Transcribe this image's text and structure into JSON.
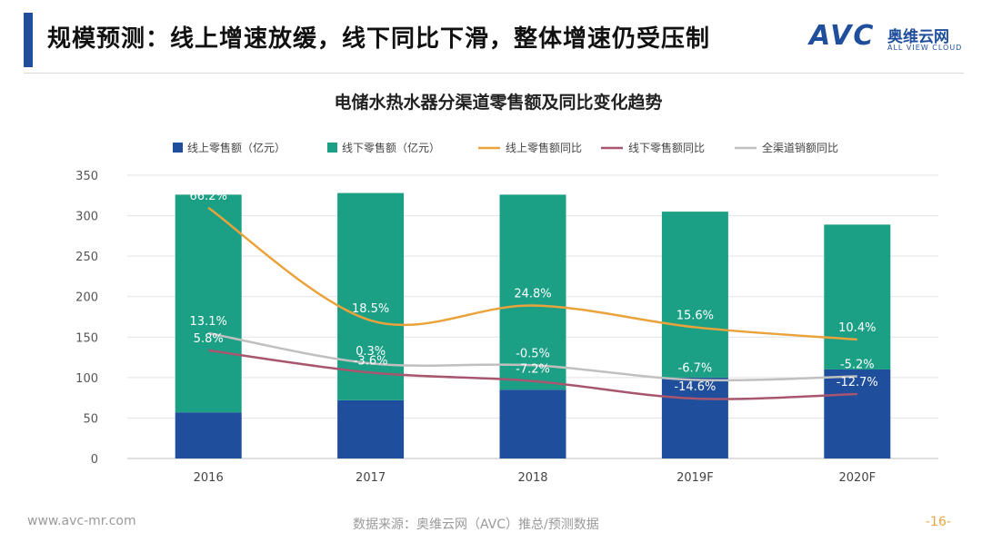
{
  "header": {
    "title": "规模预测：线上增速放缓，线下同比下滑，整体增速仍受压制",
    "accent_color": "#1f4e9c"
  },
  "logo": {
    "mark": "AVC",
    "name_cn": "奥维云网",
    "name_en": "ALL VIEW CLOUD"
  },
  "footer": {
    "website": "www.avc-mr.com",
    "source": "数据来源：奥维云网（AVC）推总/预测数据",
    "page": "-16-"
  },
  "chart_data": {
    "type": "bar",
    "stacked": true,
    "title": "电储水热水器分渠道零售额及同比变化趋势",
    "categories": [
      "2016",
      "2017",
      "2018",
      "2019F",
      "2020F"
    ],
    "ylim": [
      0,
      350
    ],
    "yticks": [
      0,
      50,
      100,
      150,
      200,
      250,
      300,
      350
    ],
    "grid": true,
    "legend_position": "top",
    "series": [
      {
        "name": "线上零售额（亿元）",
        "kind": "bar",
        "color": "#1f4e9c",
        "values": [
          57,
          72,
          85,
          100,
          110
        ]
      },
      {
        "name": "线下零售额（亿元）",
        "kind": "bar",
        "color": "#1ca085",
        "values": [
          269,
          256,
          241,
          205,
          179
        ]
      },
      {
        "name": "线上零售额同比",
        "kind": "line",
        "color": "#e9a33a",
        "values": [
          66.2,
          18.5,
          24.8,
          15.6,
          10.4
        ],
        "labels": [
          "66.2%",
          "18.5%",
          "24.8%",
          "15.6%",
          "10.4%"
        ]
      },
      {
        "name": "线下零售额同比",
        "kind": "line",
        "color": "#a8566e",
        "values": [
          5.8,
          -3.6,
          -7.2,
          -14.6,
          -12.7
        ],
        "labels": [
          "5.8%",
          "-3.6%",
          "-7.2%",
          "-14.6%",
          "-12.7%"
        ]
      },
      {
        "name": "全渠道销额同比",
        "kind": "line",
        "color": "#c0c0c0",
        "values": [
          13.1,
          0.3,
          -0.5,
          -6.7,
          -5.2
        ],
        "labels": [
          "13.1%",
          "0.3%",
          "-0.5%",
          "-6.7%",
          "-5.2%"
        ]
      }
    ]
  }
}
